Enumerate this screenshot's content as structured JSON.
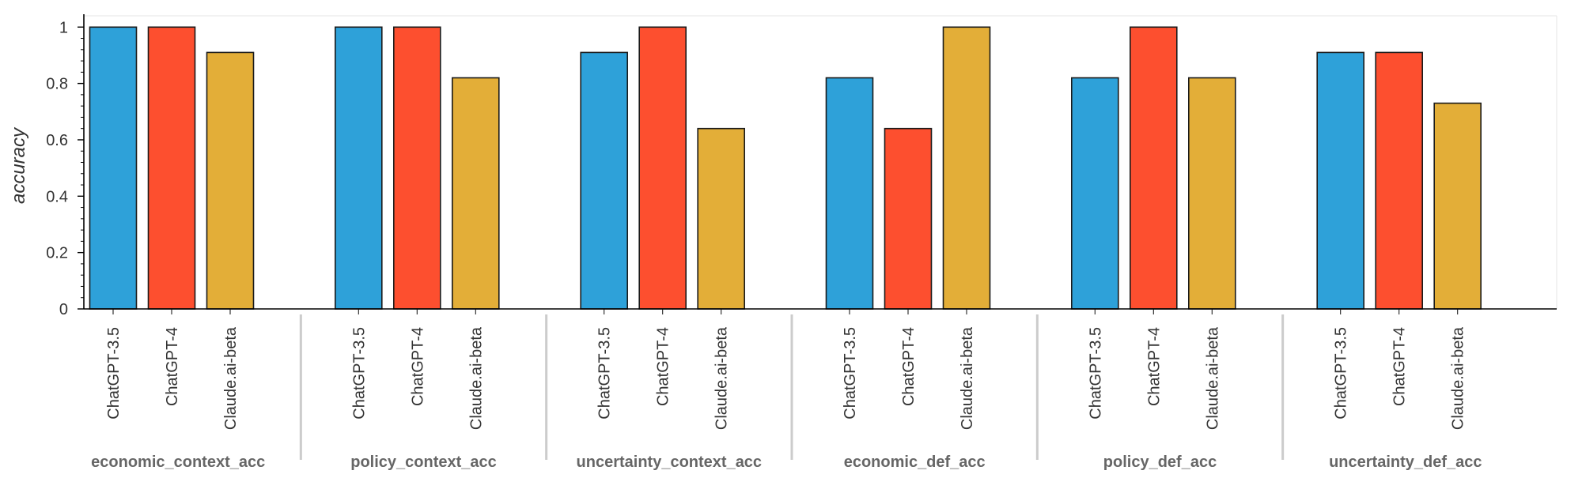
{
  "chart_data": {
    "type": "bar",
    "ylabel": "accuracy",
    "ylim": [
      0,
      1.04
    ],
    "yticks": [
      "0",
      "0.2",
      "0.4",
      "0.6",
      "0.8",
      "1"
    ],
    "grid": false,
    "groups": [
      "economic_context_acc",
      "policy_context_acc",
      "uncertainty_context_acc",
      "economic_def_acc",
      "policy_def_acc",
      "uncertainty_def_acc"
    ],
    "series": [
      {
        "name": "ChatGPT-3.5",
        "color": "#2ea1d9",
        "values": [
          1.0,
          1.0,
          0.91,
          0.82,
          0.82,
          0.91
        ]
      },
      {
        "name": "ChatGPT-4",
        "color": "#fd4f2f",
        "values": [
          1.0,
          1.0,
          1.0,
          0.64,
          1.0,
          0.91
        ]
      },
      {
        "name": "Claude.ai-beta",
        "color": "#e3ae38",
        "values": [
          0.91,
          0.82,
          0.64,
          1.0,
          0.82,
          0.73
        ]
      }
    ]
  }
}
